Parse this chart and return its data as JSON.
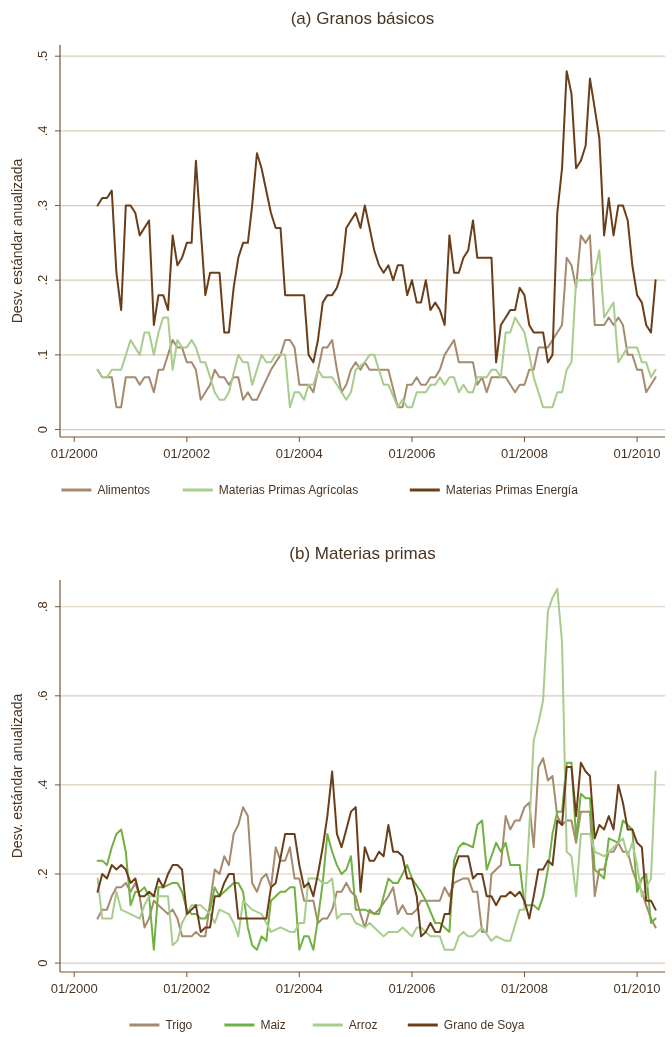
{
  "chart_data": [
    {
      "type": "line",
      "title": "(a) Granos básicos",
      "ylabel": "Desv. estándar anualizada",
      "xlim": [
        "1999-10",
        "2010-07"
      ],
      "ylim": [
        -0.01,
        0.515
      ],
      "xticks": [
        {
          "value": "2000-01",
          "label": "01/2000"
        },
        {
          "value": "2002-01",
          "label": "01/2002"
        },
        {
          "value": "2004-01",
          "label": "01/2004"
        },
        {
          "value": "2006-01",
          "label": "01/2006"
        },
        {
          "value": "2008-01",
          "label": "01/2008"
        },
        {
          "value": "2010-01",
          "label": "01/2010"
        }
      ],
      "yticks": [
        0,
        {
          "value": 0.1,
          "label": ".1"
        },
        {
          "value": 0.2,
          "label": ".2"
        },
        {
          "value": 0.3,
          "label": ".3"
        },
        {
          "value": 0.4,
          "label": ".4"
        },
        {
          "value": 0.5,
          "label": ".5"
        }
      ],
      "grid": "y",
      "legend": "bottom",
      "series": [
        {
          "name": "Alimentos",
          "color": "#a68a6d",
          "x": [
            "2000-06",
            "2000-07",
            "2000-09",
            "2000-10",
            "2000-11",
            "2000-12",
            "2001-02",
            "2001-03",
            "2001-04",
            "2001-05",
            "2001-06",
            "2001-07",
            "2001-08",
            "2001-10",
            "2001-11",
            "2001-12",
            "2002-01",
            "2002-02",
            "2002-03",
            "2002-04",
            "2002-06",
            "2002-07",
            "2002-08",
            "2002-09",
            "2002-10",
            "2002-11",
            "2002-12",
            "2003-01",
            "2003-02",
            "2003-03",
            "2003-04",
            "2003-07",
            "2003-09",
            "2003-10",
            "2003-11",
            "2003-12",
            "2004-01",
            "2004-03",
            "2004-04",
            "2004-06",
            "2004-07",
            "2004-08",
            "2004-09",
            "2004-10",
            "2004-11",
            "2004-12",
            "2005-01",
            "2005-02",
            "2005-03",
            "2005-04",
            "2005-08",
            "2005-10",
            "2005-11",
            "2005-12",
            "2006-01",
            "2006-02",
            "2006-03",
            "2006-04",
            "2006-05",
            "2006-06",
            "2006-07",
            "2006-08",
            "2006-10",
            "2006-11",
            "2007-02",
            "2007-03",
            "2007-04",
            "2007-05",
            "2007-06",
            "2007-09",
            "2007-11",
            "2007-12",
            "2008-01",
            "2008-02",
            "2008-03",
            "2008-04",
            "2008-06",
            "2008-09",
            "2008-10",
            "2008-11",
            "2008-12",
            "2009-01",
            "2009-02",
            "2009-03",
            "2009-04",
            "2009-06",
            "2009-07",
            "2009-08",
            "2009-09",
            "2009-10",
            "2009-11",
            "2009-12",
            "2010-01",
            "2010-02",
            "2010-03",
            "2010-05"
          ],
          "values": [
            0.08,
            0.07,
            0.07,
            0.03,
            0.03,
            0.07,
            0.07,
            0.06,
            0.07,
            0.07,
            0.05,
            0.08,
            0.08,
            0.12,
            0.11,
            0.11,
            0.09,
            0.09,
            0.08,
            0.04,
            0.06,
            0.08,
            0.07,
            0.07,
            0.06,
            0.07,
            0.07,
            0.04,
            0.05,
            0.04,
            0.04,
            0.08,
            0.1,
            0.12,
            0.12,
            0.11,
            0.06,
            0.06,
            0.05,
            0.11,
            0.11,
            0.12,
            0.08,
            0.05,
            0.06,
            0.08,
            0.09,
            0.08,
            0.09,
            0.08,
            0.08,
            0.03,
            0.03,
            0.06,
            0.06,
            0.07,
            0.06,
            0.06,
            0.07,
            0.07,
            0.08,
            0.1,
            0.12,
            0.09,
            0.09,
            0.06,
            0.07,
            0.05,
            0.07,
            0.07,
            0.05,
            0.06,
            0.06,
            0.08,
            0.08,
            0.11,
            0.11,
            0.14,
            0.23,
            0.22,
            0.19,
            0.26,
            0.25,
            0.26,
            0.14,
            0.14,
            0.15,
            0.14,
            0.15,
            0.14,
            0.1,
            0.1,
            0.08,
            0.08,
            0.05,
            0.07
          ]
        },
        {
          "name": "Materias Primas Agrícolas",
          "color": "#a8cc8c",
          "x": [
            "2000-06",
            "2000-07",
            "2000-08",
            "2000-09",
            "2000-11",
            "2001-01",
            "2001-03",
            "2001-04",
            "2001-05",
            "2001-06",
            "2001-07",
            "2001-08",
            "2001-09",
            "2001-10",
            "2001-11",
            "2001-12",
            "2002-01",
            "2002-02",
            "2002-03",
            "2002-04",
            "2002-05",
            "2002-06",
            "2002-07",
            "2002-08",
            "2002-09",
            "2002-10",
            "2002-12",
            "2003-01",
            "2003-02",
            "2003-03",
            "2003-04",
            "2003-05",
            "2003-06",
            "2003-07",
            "2003-08",
            "2003-10",
            "2003-11",
            "2003-12",
            "2004-01",
            "2004-02",
            "2004-03",
            "2004-04",
            "2004-05",
            "2004-06",
            "2004-08",
            "2004-09",
            "2004-11",
            "2004-12",
            "2005-01",
            "2005-03",
            "2005-04",
            "2005-05",
            "2005-06",
            "2005-07",
            "2005-08",
            "2005-10",
            "2005-11",
            "2005-12",
            "2006-01",
            "2006-02",
            "2006-04",
            "2006-05",
            "2006-06",
            "2006-07",
            "2006-08",
            "2006-09",
            "2006-10",
            "2006-11",
            "2006-12",
            "2007-01",
            "2007-02",
            "2007-03",
            "2007-05",
            "2007-06",
            "2007-07",
            "2007-08",
            "2007-09",
            "2007-10",
            "2007-11",
            "2008-01",
            "2008-02",
            "2008-03",
            "2008-05",
            "2008-07",
            "2008-08",
            "2008-09",
            "2008-10",
            "2008-11",
            "2008-12",
            "2009-03",
            "2009-04",
            "2009-05",
            "2009-06",
            "2009-08",
            "2009-09",
            "2009-11",
            "2010-01",
            "2010-02",
            "2010-03",
            "2010-04",
            "2010-05"
          ],
          "values": [
            0.08,
            0.07,
            0.07,
            0.08,
            0.08,
            0.12,
            0.1,
            0.13,
            0.13,
            0.1,
            0.13,
            0.15,
            0.15,
            0.08,
            0.12,
            0.11,
            0.11,
            0.12,
            0.11,
            0.09,
            0.09,
            0.07,
            0.05,
            0.04,
            0.04,
            0.05,
            0.1,
            0.09,
            0.09,
            0.06,
            0.08,
            0.1,
            0.09,
            0.09,
            0.1,
            0.1,
            0.03,
            0.05,
            0.05,
            0.04,
            0.06,
            0.06,
            0.08,
            0.07,
            0.07,
            0.06,
            0.04,
            0.05,
            0.08,
            0.09,
            0.1,
            0.1,
            0.08,
            0.06,
            0.06,
            0.03,
            0.04,
            0.03,
            0.03,
            0.05,
            0.05,
            0.06,
            0.06,
            0.07,
            0.06,
            0.07,
            0.07,
            0.05,
            0.06,
            0.05,
            0.05,
            0.07,
            0.07,
            0.08,
            0.08,
            0.07,
            0.13,
            0.13,
            0.15,
            0.13,
            0.1,
            0.07,
            0.03,
            0.03,
            0.05,
            0.05,
            0.08,
            0.09,
            0.2,
            0.2,
            0.21,
            0.24,
            0.15,
            0.17,
            0.09,
            0.11,
            0.11,
            0.09,
            0.09,
            0.07,
            0.08
          ]
        },
        {
          "name": "Materias Primas Energía",
          "color": "#6b3e1a",
          "x": [
            "2000-06",
            "2000-07",
            "2000-08",
            "2000-09",
            "2000-10",
            "2000-11",
            "2000-12",
            "2001-01",
            "2001-02",
            "2001-03",
            "2001-05",
            "2001-06",
            "2001-07",
            "2001-08",
            "2001-09",
            "2001-10",
            "2001-11",
            "2001-12",
            "2002-01",
            "2002-02",
            "2002-03",
            "2002-05",
            "2002-06",
            "2002-08",
            "2002-09",
            "2002-10",
            "2002-11",
            "2002-12",
            "2003-01",
            "2003-02",
            "2003-03",
            "2003-04",
            "2003-05",
            "2003-07",
            "2003-08",
            "2003-09",
            "2003-10",
            "2004-02",
            "2004-03",
            "2004-04",
            "2004-05",
            "2004-06",
            "2004-07",
            "2004-08",
            "2004-09",
            "2004-10",
            "2004-11",
            "2004-12",
            "2005-01",
            "2005-02",
            "2005-03",
            "2005-04",
            "2005-05",
            "2005-06",
            "2005-07",
            "2005-08",
            "2005-09",
            "2005-10",
            "2005-11",
            "2005-12",
            "2006-01",
            "2006-02",
            "2006-03",
            "2006-04",
            "2006-05",
            "2006-06",
            "2006-07",
            "2006-08",
            "2006-09",
            "2006-10",
            "2006-11",
            "2006-12",
            "2007-01",
            "2007-02",
            "2007-03",
            "2007-06",
            "2007-07",
            "2007-08",
            "2007-09",
            "2007-10",
            "2007-11",
            "2007-12",
            "2008-01",
            "2008-02",
            "2008-03",
            "2008-05",
            "2008-06",
            "2008-07",
            "2008-08",
            "2008-09",
            "2008-10",
            "2008-11",
            "2008-12",
            "2009-01",
            "2009-02",
            "2009-03",
            "2009-04",
            "2009-05",
            "2009-06",
            "2009-07",
            "2009-08",
            "2009-09",
            "2009-10",
            "2009-11",
            "2009-12",
            "2010-01",
            "2010-02",
            "2010-03",
            "2010-04",
            "2010-05"
          ],
          "values": [
            0.3,
            0.31,
            0.31,
            0.32,
            0.21,
            0.16,
            0.3,
            0.3,
            0.29,
            0.26,
            0.28,
            0.14,
            0.18,
            0.18,
            0.16,
            0.26,
            0.22,
            0.23,
            0.25,
            0.25,
            0.36,
            0.18,
            0.21,
            0.21,
            0.13,
            0.13,
            0.19,
            0.23,
            0.25,
            0.25,
            0.3,
            0.37,
            0.35,
            0.29,
            0.27,
            0.27,
            0.18,
            0.18,
            0.1,
            0.09,
            0.12,
            0.17,
            0.18,
            0.18,
            0.19,
            0.21,
            0.27,
            0.28,
            0.29,
            0.27,
            0.3,
            0.27,
            0.24,
            0.22,
            0.21,
            0.22,
            0.2,
            0.22,
            0.22,
            0.18,
            0.2,
            0.17,
            0.17,
            0.2,
            0.16,
            0.17,
            0.16,
            0.14,
            0.26,
            0.21,
            0.21,
            0.23,
            0.24,
            0.28,
            0.23,
            0.23,
            0.09,
            0.14,
            0.15,
            0.16,
            0.16,
            0.19,
            0.18,
            0.14,
            0.13,
            0.13,
            0.09,
            0.1,
            0.29,
            0.35,
            0.48,
            0.45,
            0.35,
            0.36,
            0.38,
            0.47,
            0.43,
            0.39,
            0.26,
            0.31,
            0.26,
            0.3,
            0.3,
            0.28,
            0.22,
            0.18,
            0.17,
            0.14,
            0.13,
            0.2
          ]
        }
      ]
    },
    {
      "type": "line",
      "title": "(b) Materias primas",
      "ylabel": "Desv. estándar anualizada",
      "xlim": [
        "1999-10",
        "2010-07"
      ],
      "ylim": [
        -0.02,
        0.86
      ],
      "xticks": [
        {
          "value": "2000-01",
          "label": "01/2000"
        },
        {
          "value": "2002-01",
          "label": "01/2002"
        },
        {
          "value": "2004-01",
          "label": "01/2004"
        },
        {
          "value": "2006-01",
          "label": "01/2006"
        },
        {
          "value": "2008-01",
          "label": "01/2008"
        },
        {
          "value": "2010-01",
          "label": "01/2010"
        }
      ],
      "yticks": [
        0,
        {
          "value": 0.2,
          "label": ".2"
        },
        {
          "value": 0.4,
          "label": ".4"
        },
        {
          "value": 0.6,
          "label": ".6"
        },
        {
          "value": 0.8,
          "label": ".8"
        }
      ],
      "grid": "y",
      "legend": "bottom",
      "series": [
        {
          "name": "Trigo",
          "color": "#a68a6d",
          "x": [
            "2000-06",
            "2000-07",
            "2000-08",
            "2000-09",
            "2000-10",
            "2000-11",
            "2000-12",
            "2001-01",
            "2001-02",
            "2001-03",
            "2001-04",
            "2001-05",
            "2001-06",
            "2001-07",
            "2001-08",
            "2001-09",
            "2001-10",
            "2001-11",
            "2001-12",
            "2002-02",
            "2002-03",
            "2002-04",
            "2002-05",
            "2002-07",
            "2002-08",
            "2002-09",
            "2002-10",
            "2002-11",
            "2002-12",
            "2003-01",
            "2003-02",
            "2003-03",
            "2003-04",
            "2003-05",
            "2003-06",
            "2003-07",
            "2003-08",
            "2003-09",
            "2003-10",
            "2003-11",
            "2003-12",
            "2004-01",
            "2004-02",
            "2004-04",
            "2004-05",
            "2004-06",
            "2004-07",
            "2004-08",
            "2004-09",
            "2004-10",
            "2004-11",
            "2004-12",
            "2005-01",
            "2005-02",
            "2005-03",
            "2005-04",
            "2005-05",
            "2005-06",
            "2005-08",
            "2005-09",
            "2005-10",
            "2005-11",
            "2005-12",
            "2006-01",
            "2006-02",
            "2006-03",
            "2006-07",
            "2006-08",
            "2006-09",
            "2006-10",
            "2006-12",
            "2007-01",
            "2007-02",
            "2007-03",
            "2007-04",
            "2007-05",
            "2007-06",
            "2007-07",
            "2007-08",
            "2007-09",
            "2007-10",
            "2007-11",
            "2007-12",
            "2008-01",
            "2008-02",
            "2008-03",
            "2008-04",
            "2008-05",
            "2008-06",
            "2008-07",
            "2008-08",
            "2008-09",
            "2008-10",
            "2008-11",
            "2008-12",
            "2009-01",
            "2009-02",
            "2009-03",
            "2009-04",
            "2009-05",
            "2009-06",
            "2009-07",
            "2009-08",
            "2009-09",
            "2009-10",
            "2009-11",
            "2009-12",
            "2010-01",
            "2010-02",
            "2010-03",
            "2010-04",
            "2010-05"
          ],
          "values": [
            0.1,
            0.12,
            0.12,
            0.15,
            0.17,
            0.17,
            0.18,
            0.16,
            0.18,
            0.15,
            0.08,
            0.1,
            0.14,
            0.13,
            0.12,
            0.11,
            0.12,
            0.1,
            0.06,
            0.06,
            0.07,
            0.06,
            0.06,
            0.21,
            0.2,
            0.24,
            0.22,
            0.29,
            0.31,
            0.35,
            0.33,
            0.18,
            0.16,
            0.19,
            0.2,
            0.17,
            0.26,
            0.23,
            0.23,
            0.26,
            0.19,
            0.19,
            0.14,
            0.14,
            0.09,
            0.1,
            0.1,
            0.12,
            0.16,
            0.16,
            0.18,
            0.16,
            0.15,
            0.11,
            0.08,
            0.12,
            0.11,
            0.12,
            0.15,
            0.17,
            0.11,
            0.13,
            0.11,
            0.11,
            0.12,
            0.14,
            0.14,
            0.17,
            0.15,
            0.18,
            0.19,
            0.19,
            0.16,
            0.16,
            0.07,
            0.07,
            0.2,
            0.21,
            0.22,
            0.33,
            0.3,
            0.32,
            0.32,
            0.35,
            0.36,
            0.26,
            0.44,
            0.46,
            0.41,
            0.42,
            0.33,
            0.31,
            0.32,
            0.32,
            0.27,
            0.34,
            0.34,
            0.34,
            0.15,
            0.21,
            0.21,
            0.25,
            0.25,
            0.27,
            0.25,
            0.25,
            0.21,
            0.18,
            0.16,
            0.13,
            0.1,
            0.08
          ]
        },
        {
          "name": "Maiz",
          "color": "#72b043",
          "x": [
            "2000-06",
            "2000-07",
            "2000-08",
            "2000-09",
            "2000-10",
            "2000-11",
            "2000-12",
            "2001-01",
            "2001-02",
            "2001-03",
            "2001-04",
            "2001-05",
            "2001-06",
            "2001-07",
            "2001-08",
            "2001-10",
            "2001-11",
            "2001-12",
            "2002-01",
            "2002-02",
            "2002-03",
            "2002-04",
            "2002-05",
            "2002-06",
            "2002-07",
            "2002-08",
            "2002-09",
            "2002-11",
            "2002-12",
            "2003-01",
            "2003-02",
            "2003-03",
            "2003-04",
            "2003-05",
            "2003-06",
            "2003-07",
            "2003-08",
            "2003-09",
            "2003-10",
            "2003-11",
            "2003-12",
            "2004-01",
            "2004-02",
            "2004-03",
            "2004-04",
            "2004-05",
            "2004-06",
            "2004-07",
            "2004-08",
            "2004-09",
            "2004-10",
            "2004-11",
            "2004-12",
            "2005-01",
            "2005-03",
            "2005-05",
            "2005-06",
            "2005-08",
            "2005-09",
            "2005-10",
            "2005-12",
            "2006-01",
            "2006-03",
            "2006-04",
            "2006-06",
            "2006-07",
            "2006-09",
            "2006-10",
            "2006-11",
            "2006-12",
            "2007-02",
            "2007-03",
            "2007-04",
            "2007-05",
            "2007-06",
            "2007-07",
            "2007-08",
            "2007-09",
            "2007-10",
            "2007-12",
            "2008-01",
            "2008-03",
            "2008-04",
            "2008-05",
            "2008-06",
            "2008-07",
            "2008-08",
            "2008-09",
            "2008-10",
            "2008-11",
            "2008-12",
            "2009-01",
            "2009-02",
            "2009-03",
            "2009-04",
            "2009-06",
            "2009-07",
            "2009-09",
            "2009-10",
            "2009-12",
            "2010-01",
            "2010-02",
            "2010-03",
            "2010-04",
            "2010-05"
          ],
          "values": [
            0.23,
            0.23,
            0.22,
            0.26,
            0.29,
            0.3,
            0.25,
            0.13,
            0.16,
            0.16,
            0.17,
            0.15,
            0.03,
            0.17,
            0.17,
            0.18,
            0.18,
            0.16,
            0.12,
            0.11,
            0.11,
            0.1,
            0.1,
            0.12,
            0.17,
            0.15,
            0.16,
            0.18,
            0.18,
            0.16,
            0.08,
            0.04,
            0.03,
            0.06,
            0.05,
            0.14,
            0.15,
            0.16,
            0.16,
            0.17,
            0.17,
            0.03,
            0.06,
            0.06,
            0.03,
            0.1,
            0.18,
            0.29,
            0.25,
            0.22,
            0.2,
            0.21,
            0.24,
            0.12,
            0.12,
            0.11,
            0.11,
            0.19,
            0.18,
            0.18,
            0.22,
            0.19,
            0.16,
            0.14,
            0.09,
            0.09,
            0.07,
            0.23,
            0.26,
            0.27,
            0.26,
            0.31,
            0.32,
            0.21,
            0.24,
            0.27,
            0.25,
            0.27,
            0.22,
            0.22,
            0.13,
            0.13,
            0.12,
            0.15,
            0.21,
            0.29,
            0.34,
            0.34,
            0.45,
            0.45,
            0.28,
            0.38,
            0.37,
            0.37,
            0.21,
            0.19,
            0.28,
            0.27,
            0.32,
            0.3,
            0.16,
            0.19,
            0.2,
            0.09,
            0.1
          ]
        },
        {
          "name": "Arroz",
          "color": "#a8cc8c",
          "x": [
            "2000-06",
            "2000-07",
            "2000-09",
            "2000-10",
            "2000-11",
            "2001-01",
            "2001-03",
            "2001-04",
            "2001-05",
            "2001-07",
            "2001-09",
            "2001-10",
            "2001-11",
            "2001-12",
            "2002-02",
            "2002-04",
            "2002-05",
            "2002-06",
            "2002-07",
            "2002-08",
            "2002-10",
            "2002-11",
            "2002-12",
            "2003-01",
            "2003-03",
            "2003-05",
            "2003-07",
            "2003-09",
            "2003-11",
            "2003-12",
            "2004-01",
            "2004-02",
            "2004-03",
            "2004-05",
            "2004-06",
            "2004-07",
            "2004-08",
            "2004-09",
            "2004-10",
            "2004-12",
            "2005-01",
            "2005-03",
            "2005-04",
            "2005-05",
            "2005-07",
            "2005-08",
            "2005-10",
            "2005-11",
            "2006-01",
            "2006-02",
            "2006-03",
            "2006-05",
            "2006-07",
            "2006-08",
            "2006-10",
            "2006-11",
            "2006-12",
            "2007-01",
            "2007-02",
            "2007-04",
            "2007-06",
            "2007-07",
            "2007-09",
            "2007-10",
            "2007-12",
            "2008-01",
            "2008-02",
            "2008-03",
            "2008-04",
            "2008-05",
            "2008-06",
            "2008-07",
            "2008-08",
            "2008-09",
            "2008-10",
            "2008-11",
            "2008-12",
            "2009-01",
            "2009-03",
            "2009-04",
            "2009-06",
            "2009-08",
            "2009-09",
            "2009-10",
            "2009-11",
            "2009-12",
            "2010-01",
            "2010-02",
            "2010-03",
            "2010-04",
            "2010-05"
          ],
          "values": [
            0.19,
            0.1,
            0.1,
            0.16,
            0.12,
            0.11,
            0.1,
            0.13,
            0.15,
            0.15,
            0.15,
            0.04,
            0.05,
            0.09,
            0.13,
            0.13,
            0.12,
            0.11,
            0.09,
            0.12,
            0.11,
            0.09,
            0.06,
            0.14,
            0.12,
            0.11,
            0.07,
            0.08,
            0.07,
            0.07,
            0.09,
            0.09,
            0.19,
            0.19,
            0.18,
            0.18,
            0.19,
            0.1,
            0.11,
            0.11,
            0.09,
            0.08,
            0.09,
            0.08,
            0.06,
            0.07,
            0.07,
            0.08,
            0.06,
            0.08,
            0.08,
            0.06,
            0.06,
            0.03,
            0.03,
            0.06,
            0.07,
            0.06,
            0.06,
            0.08,
            0.05,
            0.06,
            0.05,
            0.05,
            0.12,
            0.12,
            0.3,
            0.5,
            0.54,
            0.59,
            0.79,
            0.82,
            0.84,
            0.72,
            0.25,
            0.24,
            0.15,
            0.29,
            0.29,
            0.25,
            0.24,
            0.26,
            0.27,
            0.28,
            0.24,
            0.27,
            0.22,
            0.15,
            0.17,
            0.19,
            0.43
          ]
        },
        {
          "name": "Grano de Soya",
          "color": "#6b3e1a",
          "x": [
            "2000-06",
            "2000-07",
            "2000-08",
            "2000-09",
            "2000-10",
            "2000-11",
            "2000-12",
            "2001-01",
            "2001-02",
            "2001-03",
            "2001-04",
            "2001-05",
            "2001-06",
            "2001-07",
            "2001-08",
            "2001-09",
            "2001-10",
            "2001-11",
            "2001-12",
            "2002-01",
            "2002-02",
            "2002-03",
            "2002-04",
            "2002-05",
            "2002-06",
            "2002-07",
            "2002-08",
            "2002-09",
            "2002-10",
            "2002-11",
            "2002-12",
            "2003-06",
            "2003-07",
            "2003-08",
            "2003-10",
            "2003-12",
            "2004-01",
            "2004-02",
            "2004-03",
            "2004-04",
            "2004-05",
            "2004-06",
            "2004-07",
            "2004-08",
            "2004-09",
            "2004-10",
            "2004-11",
            "2004-12",
            "2005-01",
            "2005-02",
            "2005-03",
            "2005-04",
            "2005-05",
            "2005-06",
            "2005-07",
            "2005-08",
            "2005-09",
            "2005-10",
            "2005-11",
            "2005-12",
            "2006-01",
            "2006-02",
            "2006-03",
            "2006-04",
            "2006-05",
            "2006-06",
            "2006-07",
            "2006-08",
            "2006-09",
            "2006-10",
            "2006-11",
            "2007-01",
            "2007-02",
            "2007-03",
            "2007-04",
            "2007-05",
            "2007-06",
            "2007-07",
            "2007-08",
            "2007-09",
            "2007-10",
            "2007-11",
            "2007-12",
            "2008-01",
            "2008-02",
            "2008-03",
            "2008-04",
            "2008-05",
            "2008-06",
            "2008-07",
            "2008-08",
            "2008-09",
            "2008-10",
            "2008-11",
            "2008-12",
            "2009-01",
            "2009-02",
            "2009-03",
            "2009-04",
            "2009-05",
            "2009-06",
            "2009-07",
            "2009-08",
            "2009-09",
            "2009-10",
            "2009-11",
            "2009-12",
            "2010-01",
            "2010-02",
            "2010-03",
            "2010-04",
            "2010-05"
          ],
          "values": [
            0.16,
            0.2,
            0.19,
            0.22,
            0.21,
            0.22,
            0.21,
            0.18,
            0.19,
            0.15,
            0.15,
            0.16,
            0.15,
            0.19,
            0.17,
            0.2,
            0.22,
            0.22,
            0.21,
            0.11,
            0.12,
            0.13,
            0.07,
            0.08,
            0.08,
            0.15,
            0.15,
            0.18,
            0.2,
            0.2,
            0.1,
            0.1,
            0.17,
            0.18,
            0.29,
            0.29,
            0.22,
            0.17,
            0.18,
            0.15,
            0.2,
            0.26,
            0.33,
            0.43,
            0.29,
            0.26,
            0.3,
            0.34,
            0.35,
            0.16,
            0.26,
            0.23,
            0.23,
            0.25,
            0.24,
            0.31,
            0.25,
            0.25,
            0.24,
            0.19,
            0.19,
            0.15,
            0.06,
            0.07,
            0.09,
            0.07,
            0.07,
            0.11,
            0.11,
            0.21,
            0.24,
            0.24,
            0.19,
            0.2,
            0.2,
            0.15,
            0.15,
            0.13,
            0.15,
            0.15,
            0.16,
            0.15,
            0.16,
            0.14,
            0.1,
            0.15,
            0.21,
            0.21,
            0.23,
            0.22,
            0.32,
            0.31,
            0.44,
            0.44,
            0.33,
            0.45,
            0.43,
            0.42,
            0.28,
            0.31,
            0.3,
            0.33,
            0.3,
            0.4,
            0.36,
            0.3,
            0.3,
            0.27,
            0.26,
            0.14,
            0.14,
            0.12
          ]
        }
      ]
    }
  ]
}
